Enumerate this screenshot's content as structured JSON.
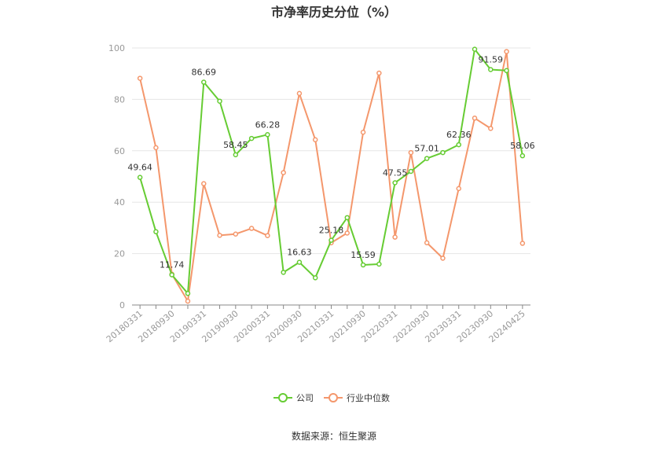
{
  "chart_data": {
    "type": "line",
    "title": "市净率历史分位（%）",
    "source": "数据来源：恒生聚源",
    "ylim": [
      0,
      100
    ],
    "yticks": [
      0,
      20,
      40,
      60,
      80,
      100
    ],
    "grid": true,
    "legend_position": "bottom",
    "x_tick_labels": [
      "20180331",
      "20180930",
      "20190331",
      "20190930",
      "20200331",
      "20200930",
      "20210331",
      "20210930",
      "20220331",
      "20220930",
      "20230331",
      "20230930",
      "20240425"
    ],
    "series": [
      {
        "name": "公司",
        "color": "#66CC33",
        "values": [
          49.64,
          28.5,
          11.74,
          4.5,
          86.69,
          79.3,
          58.45,
          64.8,
          66.28,
          12.7,
          16.63,
          10.6,
          25.18,
          34.0,
          15.59,
          15.9,
          47.55,
          52.0,
          57.01,
          59.3,
          62.36,
          99.5,
          91.59,
          91.2,
          58.06
        ],
        "labels": {
          "0": "49.64",
          "2": "11.74",
          "4": "86.69",
          "6": "58.45",
          "8": "66.28",
          "10": "16.63",
          "12": "25.18",
          "14": "15.59",
          "16": "47.55",
          "18": "57.01",
          "20": "62.36",
          "22": "91.59",
          "24": "58.06"
        }
      },
      {
        "name": "行业中位数",
        "color": "#F4976C",
        "values": [
          88.2,
          61.2,
          12.0,
          1.5,
          47.2,
          27.1,
          27.6,
          29.8,
          27.0,
          51.5,
          82.3,
          64.3,
          24.2,
          28.0,
          67.2,
          90.2,
          26.4,
          59.3,
          24.2,
          18.2,
          45.3,
          72.7,
          68.7,
          98.6,
          24.0
        ]
      }
    ]
  }
}
